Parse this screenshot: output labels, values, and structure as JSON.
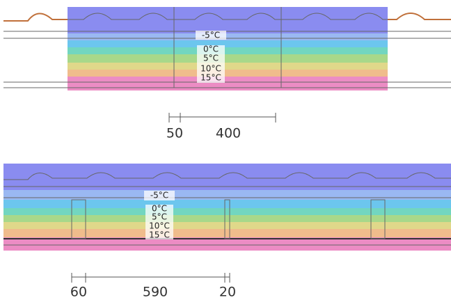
{
  "panels": [
    {
      "isotherms": [
        "-5°C",
        "0°C",
        "5°C",
        "10°C",
        "15°C"
      ],
      "dimensions": [
        "50",
        "400"
      ]
    },
    {
      "isotherms": [
        "-5°C",
        "0°C",
        "5°C",
        "10°C",
        "15°C"
      ],
      "dimensions": [
        "60",
        "590",
        "20"
      ]
    }
  ]
}
